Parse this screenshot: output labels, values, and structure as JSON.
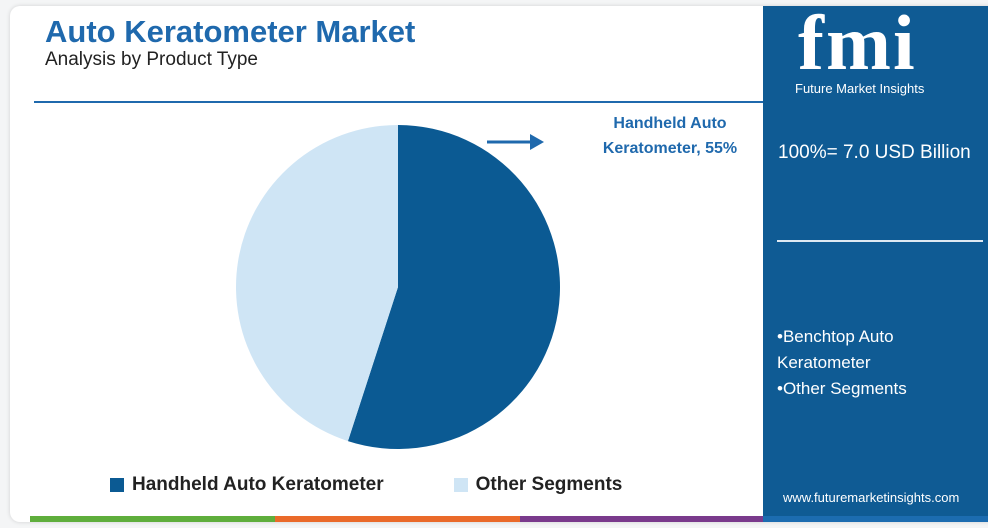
{
  "chart_data": {
    "type": "pie",
    "title": "Auto Keratometer Market",
    "subtitle": "Analysis by Product Type",
    "categories": [
      "Handheld Auto Keratometer",
      "Other Segments"
    ],
    "values": [
      55,
      45
    ],
    "value_labels": [
      "Handheld Auto Keratometer, 55%",
      null
    ],
    "colors": [
      "#0b5a93",
      "#cfe5f5"
    ]
  },
  "side_panel": {
    "logo": "fmi",
    "brand": "Future Market Insights",
    "total": "100%= 7.0 USD Billion",
    "segments": [
      "Benchtop Auto Keratometer",
      "Other Segments"
    ],
    "website": "www.futuremarketinsights.com"
  }
}
